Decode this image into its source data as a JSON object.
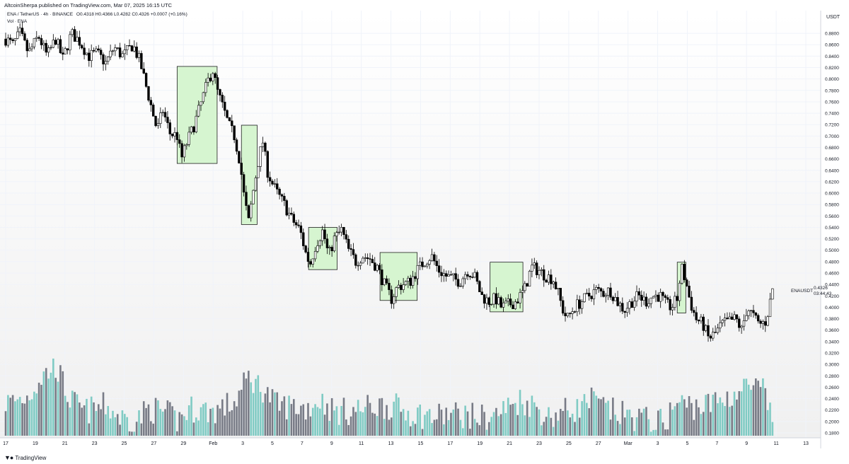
{
  "header": {
    "published": "AltcoinSherpa published on TradingView.com, Mar 07, 2025 16:15 UTC"
  },
  "legend": {
    "symbol": "ENA / TetherUS · 4h · BINANCE",
    "ohlc": "O0.4318 H0.4366 L0.4282 C0.4326 +0.0007 (+0.16%)",
    "volume": "Vol · ENA"
  },
  "axis": {
    "currency": "USDT",
    "symbol_label": "ENAUSDT",
    "last_price": "0.4326",
    "countdown": "03:44:43"
  },
  "footer": {
    "brand": "TradingView",
    "logo_icon": "tradingview-logo-icon"
  },
  "colors": {
    "up": "#ffffff",
    "down": "#000000",
    "vol_up": "#80cbc4",
    "vol_down": "#787b86",
    "box_fill": "#d6f5d0",
    "box_stroke": "#1f1f1f",
    "grid": "#f0f3fa",
    "background_top": "#ffffff",
    "background_bottom": "#f0f0f0"
  },
  "chart_data": {
    "type": "candlestick",
    "x_tick_labels": [
      "17",
      "19",
      "21",
      "23",
      "25",
      "27",
      "29",
      "Feb",
      "3",
      "5",
      "7",
      "9",
      "11",
      "13",
      "15",
      "17",
      "19",
      "21",
      "23",
      "25",
      "27",
      "Mar",
      "3",
      "5",
      "7",
      "9",
      "11",
      "13"
    ],
    "y_tick_labels": [
      "0.8800",
      "0.8600",
      "0.8400",
      "0.8200",
      "0.8000",
      "0.7800",
      "0.7600",
      "0.7400",
      "0.7200",
      "0.7000",
      "0.6800",
      "0.6600",
      "0.6400",
      "0.6200",
      "0.6000",
      "0.5800",
      "0.5600",
      "0.5400",
      "0.5200",
      "0.5000",
      "0.4800",
      "0.4600",
      "0.4400",
      "0.4200",
      "0.4000",
      "0.3800",
      "0.3600",
      "0.3400",
      "0.3200",
      "0.3000",
      "0.2800",
      "0.2600",
      "0.2400",
      "0.2200",
      "0.2000",
      "0.1800"
    ],
    "ylim": [
      0.175,
      0.895
    ],
    "grid": true,
    "price_path": [
      [
        17.0,
        0.87
      ],
      [
        17.5,
        0.86
      ],
      [
        18.0,
        0.88
      ],
      [
        18.6,
        0.845
      ],
      [
        19.3,
        0.875
      ],
      [
        19.9,
        0.84
      ],
      [
        20.5,
        0.87
      ],
      [
        21.0,
        0.835
      ],
      [
        21.6,
        0.88
      ],
      [
        22.2,
        0.865
      ],
      [
        22.8,
        0.84
      ],
      [
        23.4,
        0.845
      ],
      [
        24.0,
        0.828
      ],
      [
        24.6,
        0.855
      ],
      [
        25.2,
        0.84
      ],
      [
        25.9,
        0.86
      ],
      [
        26.4,
        0.83
      ],
      [
        26.8,
        0.79
      ],
      [
        27.2,
        0.75
      ],
      [
        27.6,
        0.71
      ],
      [
        28.0,
        0.745
      ],
      [
        28.5,
        0.705
      ],
      [
        29.0,
        0.7
      ],
      [
        29.3,
        0.66
      ],
      [
        29.7,
        0.69
      ],
      [
        30.2,
        0.72
      ],
      [
        30.7,
        0.76
      ],
      [
        31.2,
        0.8
      ],
      [
        31.5,
        0.815
      ],
      [
        31.8,
        0.78
      ],
      [
        32.2,
        0.75
      ],
      [
        32.6,
        0.72
      ],
      [
        33.0,
        0.7
      ],
      [
        33.4,
        0.655
      ],
      [
        33.7,
        0.59
      ],
      [
        34.0,
        0.55
      ],
      [
        34.3,
        0.6
      ],
      [
        34.7,
        0.66
      ],
      [
        35.0,
        0.69
      ],
      [
        35.3,
        0.64
      ],
      [
        35.6,
        0.62
      ],
      [
        36.0,
        0.6
      ],
      [
        36.5,
        0.58
      ],
      [
        37.0,
        0.555
      ],
      [
        37.6,
        0.535
      ],
      [
        38.0,
        0.495
      ],
      [
        38.3,
        0.475
      ],
      [
        38.7,
        0.51
      ],
      [
        39.2,
        0.535
      ],
      [
        39.6,
        0.49
      ],
      [
        40.0,
        0.52
      ],
      [
        40.5,
        0.535
      ],
      [
        41.0,
        0.5
      ],
      [
        41.5,
        0.48
      ],
      [
        42.0,
        0.49
      ],
      [
        42.5,
        0.485
      ],
      [
        43.0,
        0.47
      ],
      [
        43.5,
        0.44
      ],
      [
        44.0,
        0.415
      ],
      [
        44.4,
        0.435
      ],
      [
        44.8,
        0.44
      ],
      [
        45.3,
        0.445
      ],
      [
        45.8,
        0.465
      ],
      [
        46.3,
        0.48
      ],
      [
        46.8,
        0.49
      ],
      [
        47.3,
        0.465
      ],
      [
        47.8,
        0.455
      ],
      [
        48.3,
        0.45
      ],
      [
        48.8,
        0.445
      ],
      [
        49.3,
        0.465
      ],
      [
        49.8,
        0.455
      ],
      [
        50.3,
        0.42
      ],
      [
        50.8,
        0.41
      ],
      [
        51.3,
        0.415
      ],
      [
        51.7,
        0.4
      ],
      [
        52.2,
        0.405
      ],
      [
        52.7,
        0.41
      ],
      [
        53.3,
        0.43
      ],
      [
        53.8,
        0.47
      ],
      [
        54.3,
        0.465
      ],
      [
        54.8,
        0.455
      ],
      [
        55.3,
        0.45
      ],
      [
        55.6,
        0.43
      ],
      [
        56.0,
        0.395
      ],
      [
        56.3,
        0.38
      ],
      [
        56.8,
        0.4
      ],
      [
        57.3,
        0.41
      ],
      [
        57.8,
        0.42
      ],
      [
        58.3,
        0.43
      ],
      [
        58.8,
        0.425
      ],
      [
        59.3,
        0.43
      ],
      [
        59.8,
        0.41
      ],
      [
        60.3,
        0.395
      ],
      [
        60.8,
        0.41
      ],
      [
        61.3,
        0.42
      ],
      [
        61.8,
        0.41
      ],
      [
        62.3,
        0.42
      ],
      [
        62.8,
        0.42
      ],
      [
        63.2,
        0.405
      ],
      [
        63.6,
        0.4
      ],
      [
        64.0,
        0.415
      ],
      [
        64.3,
        0.47
      ],
      [
        64.6,
        0.445
      ],
      [
        64.9,
        0.41
      ],
      [
        65.3,
        0.38
      ],
      [
        65.8,
        0.37
      ],
      [
        66.2,
        0.345
      ],
      [
        66.7,
        0.355
      ],
      [
        67.1,
        0.37
      ],
      [
        67.6,
        0.375
      ],
      [
        68.1,
        0.38
      ],
      [
        68.5,
        0.36
      ],
      [
        68.9,
        0.4
      ],
      [
        69.3,
        0.385
      ],
      [
        69.7,
        0.37
      ],
      [
        70.2,
        0.375
      ],
      [
        70.5,
        0.41
      ],
      [
        70.7,
        0.433
      ],
      [
        70.8,
        0.4326
      ]
    ],
    "volume_profile": [
      [
        17.0,
        0.225
      ],
      [
        18.5,
        0.235
      ],
      [
        19.5,
        0.27
      ],
      [
        20.5,
        0.29
      ],
      [
        21.5,
        0.23
      ],
      [
        22.5,
        0.21
      ],
      [
        24.0,
        0.22
      ],
      [
        25.0,
        0.2
      ],
      [
        26.0,
        0.19
      ],
      [
        27.0,
        0.215
      ],
      [
        28.0,
        0.21
      ],
      [
        29.0,
        0.195
      ],
      [
        30.0,
        0.215
      ],
      [
        31.5,
        0.21
      ],
      [
        33.0,
        0.225
      ],
      [
        34.0,
        0.27
      ],
      [
        35.0,
        0.25
      ],
      [
        36.0,
        0.22
      ],
      [
        37.0,
        0.22
      ],
      [
        38.0,
        0.215
      ],
      [
        39.0,
        0.23
      ],
      [
        40.0,
        0.21
      ],
      [
        41.0,
        0.21
      ],
      [
        42.0,
        0.215
      ],
      [
        43.0,
        0.22
      ],
      [
        44.0,
        0.22
      ],
      [
        45.0,
        0.21
      ],
      [
        46.0,
        0.205
      ],
      [
        47.0,
        0.2
      ],
      [
        48.0,
        0.205
      ],
      [
        49.0,
        0.205
      ],
      [
        50.0,
        0.2
      ],
      [
        51.0,
        0.2
      ],
      [
        52.0,
        0.215
      ],
      [
        53.0,
        0.23
      ],
      [
        54.0,
        0.22
      ],
      [
        55.0,
        0.2
      ],
      [
        56.0,
        0.21
      ],
      [
        57.0,
        0.215
      ],
      [
        58.0,
        0.23
      ],
      [
        59.0,
        0.215
      ],
      [
        60.0,
        0.205
      ],
      [
        61.0,
        0.2
      ],
      [
        62.0,
        0.195
      ],
      [
        63.0,
        0.19
      ],
      [
        64.0,
        0.225
      ],
      [
        65.0,
        0.22
      ],
      [
        66.0,
        0.22
      ],
      [
        67.0,
        0.23
      ],
      [
        68.0,
        0.24
      ],
      [
        69.0,
        0.255
      ],
      [
        70.0,
        0.245
      ],
      [
        70.8,
        0.185
      ]
    ],
    "highlight_boxes": [
      {
        "x_from": 29.0,
        "x_to": 31.8,
        "y_from": 0.652,
        "y_to": 0.822
      },
      {
        "x_from": 33.5,
        "x_to": 34.6,
        "y_from": 0.545,
        "y_to": 0.719
      },
      {
        "x_from": 38.2,
        "x_to": 40.2,
        "y_from": 0.466,
        "y_to": 0.54
      },
      {
        "x_from": 43.2,
        "x_to": 45.8,
        "y_from": 0.412,
        "y_to": 0.496
      },
      {
        "x_from": 50.9,
        "x_to": 53.2,
        "y_from": 0.392,
        "y_to": 0.479
      },
      {
        "x_from": 64.0,
        "x_to": 64.6,
        "y_from": 0.39,
        "y_to": 0.479
      }
    ]
  }
}
